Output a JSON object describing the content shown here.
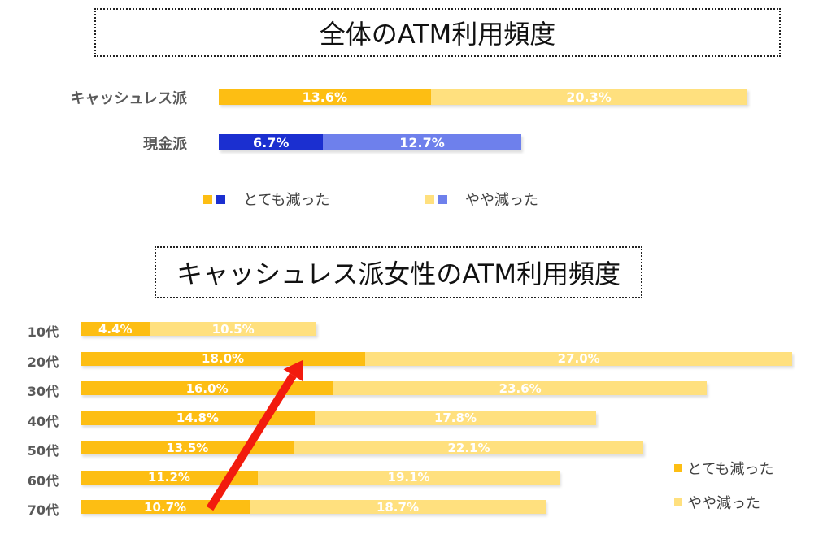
{
  "chart_data": [
    {
      "type": "bar",
      "orientation": "horizontal",
      "stacked": true,
      "title": "全体のATM利用頻度",
      "categories": [
        "キャッシュレス派",
        "現金派"
      ],
      "series": [
        {
          "name": "とても減った",
          "values": [
            13.6,
            6.7
          ]
        },
        {
          "name": "やや減った",
          "values": [
            20.3,
            12.7
          ]
        }
      ],
      "value_labels": [
        [
          "13.6%",
          "20.3%"
        ],
        [
          "6.7%",
          "12.7%"
        ]
      ],
      "colors": [
        [
          "#FDBE13",
          "#FFE07E"
        ],
        [
          "#1B2FD0",
          "#6E80EC"
        ]
      ],
      "legend": {
        "position": "bottom",
        "items": [
          {
            "label": "とても減った",
            "colors": [
              "#FDBE13",
              "#1B2FD0"
            ]
          },
          {
            "label": "やや減った",
            "colors": [
              "#FFE07E",
              "#6E80EC"
            ]
          }
        ]
      }
    },
    {
      "type": "bar",
      "orientation": "horizontal",
      "stacked": true,
      "title": "キャッシュレス派女性のATM利用頻度",
      "categories": [
        "10代",
        "20代",
        "30代",
        "40代",
        "50代",
        "60代",
        "70代"
      ],
      "series": [
        {
          "name": "とても減った",
          "values": [
            4.4,
            18.0,
            16.0,
            14.8,
            13.5,
            11.2,
            10.7
          ]
        },
        {
          "name": "やや減った",
          "values": [
            10.5,
            27.0,
            23.6,
            17.8,
            22.1,
            19.1,
            18.7
          ]
        }
      ],
      "value_labels": [
        [
          "4.4%",
          "18.0%",
          "16.0%",
          "14.8%",
          "13.5%",
          "11.2%",
          "10.7%"
        ],
        [
          "10.5%",
          "27.0%",
          "23.6%",
          "17.8%",
          "22.1%",
          "19.1%",
          "18.7%"
        ]
      ],
      "colors": [
        "#FDBE13",
        "#FFE07E"
      ],
      "legend": {
        "position": "bottom-right",
        "items": [
          {
            "label": "とても減った",
            "color": "#FDBE13"
          },
          {
            "label": "やや減った",
            "color": "#FFE07E"
          }
        ]
      },
      "annotation": {
        "type": "arrow",
        "color": "#F21B0E",
        "from_category": "70代",
        "to_category": "20代"
      }
    }
  ]
}
